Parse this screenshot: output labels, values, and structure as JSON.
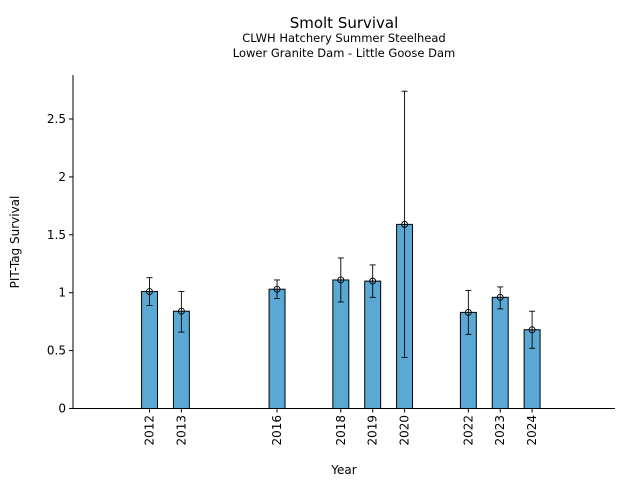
{
  "chart_data": {
    "type": "bar",
    "title": "Smolt Survival",
    "subtitle_lines": [
      "CLWH Hatchery Summer Steelhead",
      "Lower Granite Dam - Little Goose Dam"
    ],
    "xlabel": "Year",
    "ylabel": "PIT-Tag Survival",
    "x": [
      2012,
      2013,
      2016,
      2018,
      2019,
      2020,
      2022,
      2023,
      2024
    ],
    "values": [
      1.01,
      0.84,
      1.03,
      1.11,
      1.1,
      1.59,
      0.83,
      0.96,
      0.68
    ],
    "error_low": [
      0.89,
      0.66,
      0.95,
      0.92,
      0.96,
      0.44,
      0.64,
      0.86,
      0.52
    ],
    "error_high": [
      1.13,
      1.01,
      1.11,
      1.3,
      1.24,
      2.74,
      1.02,
      1.05,
      0.84
    ],
    "xlim": [
      2009.6,
      2026.6
    ],
    "ylim": [
      0,
      2.88
    ],
    "yticks": [
      0,
      0.5,
      1,
      1.5,
      2,
      2.5
    ],
    "ytick_labels": [
      "0",
      "0.5",
      "1",
      "1.5",
      "2",
      "2.5"
    ],
    "bar_color": "#5aa9d5",
    "grid": false,
    "legend": "none"
  }
}
